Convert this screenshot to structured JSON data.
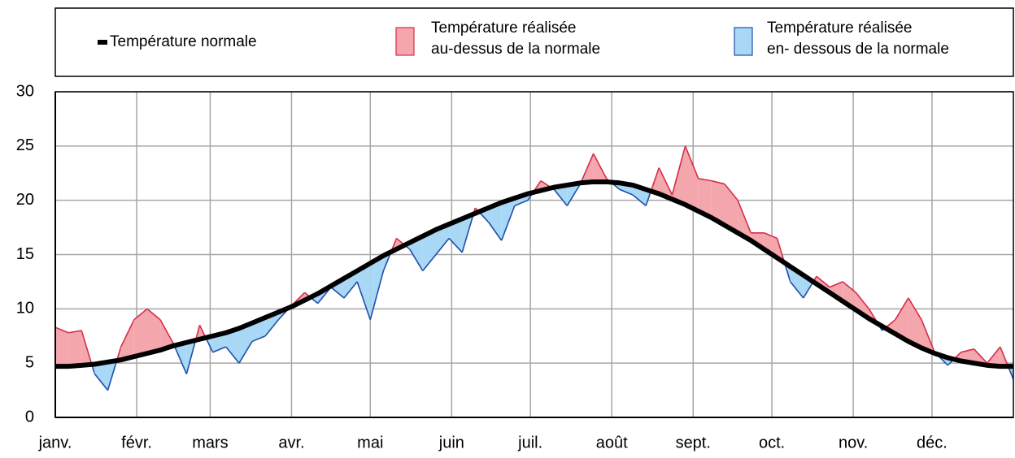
{
  "chart_data": {
    "type": "area-deviation",
    "legend": [
      {
        "name": "Température normale",
        "color": "#000000"
      },
      {
        "name": "Température réalisée\nau-dessus de la normale",
        "color": "#f4a6ad",
        "edge": "#d62d4a"
      },
      {
        "name": "Température réalisée\nen- dessous de la normale",
        "color": "#a8d8f5",
        "edge": "#1f4fa8"
      }
    ],
    "x": [
      0,
      5,
      10,
      15,
      20,
      25,
      30,
      35,
      40,
      45,
      50,
      55,
      60,
      65,
      70,
      75,
      80,
      85,
      90,
      95,
      100,
      105,
      110,
      115,
      120,
      125,
      130,
      135,
      140,
      145,
      150,
      155,
      160,
      165,
      170,
      175,
      180,
      185,
      190,
      195,
      200,
      205,
      210,
      215,
      220,
      225,
      230,
      235,
      240,
      245,
      250,
      255,
      260,
      265,
      270,
      275,
      280,
      285,
      290,
      295,
      300,
      305,
      310,
      315,
      320,
      325,
      330,
      335,
      340,
      345,
      350,
      355,
      360,
      365
    ],
    "normal": [
      4.7,
      4.7,
      4.8,
      4.9,
      5.1,
      5.3,
      5.6,
      5.9,
      6.2,
      6.6,
      6.9,
      7.2,
      7.5,
      7.8,
      8.2,
      8.7,
      9.2,
      9.7,
      10.2,
      10.8,
      11.4,
      12.1,
      12.8,
      13.5,
      14.2,
      14.9,
      15.5,
      16.1,
      16.7,
      17.3,
      17.8,
      18.3,
      18.8,
      19.3,
      19.8,
      20.2,
      20.6,
      20.9,
      21.2,
      21.4,
      21.6,
      21.7,
      21.7,
      21.6,
      21.4,
      21.0,
      20.6,
      20.1,
      19.6,
      19.0,
      18.4,
      17.7,
      17.0,
      16.3,
      15.5,
      14.7,
      13.9,
      13.1,
      12.3,
      11.5,
      10.7,
      9.9,
      9.1,
      8.4,
      7.7,
      7.0,
      6.4,
      5.9,
      5.5,
      5.2,
      5.0,
      4.8,
      4.7,
      4.7
    ],
    "realized": [
      8.3,
      7.8,
      8.0,
      4.0,
      2.5,
      6.5,
      9.0,
      10.0,
      9.0,
      6.8,
      4.0,
      8.5,
      6.0,
      6.5,
      5.0,
      7.0,
      7.5,
      9.0,
      10.3,
      11.5,
      10.5,
      12.0,
      11.0,
      12.5,
      9.0,
      13.5,
      16.5,
      15.5,
      13.5,
      15.0,
      16.5,
      15.2,
      19.3,
      18.0,
      16.3,
      19.5,
      20.0,
      21.8,
      21.0,
      19.5,
      21.5,
      24.3,
      22.0,
      21.0,
      20.5,
      19.5,
      23.0,
      20.5,
      25.0,
      22.0,
      21.8,
      21.5,
      20.0,
      17.0,
      17.0,
      16.5,
      12.5,
      11.0,
      13.0,
      12.0,
      12.5,
      11.5,
      10.0,
      8.0,
      9.0,
      11.0,
      9.0,
      6.0,
      4.8,
      6.0,
      6.3,
      5.0,
      6.5,
      3.5
    ],
    "xlim": [
      0,
      365
    ],
    "xticks": [
      {
        "value": 0,
        "label": "janv."
      },
      {
        "value": 31,
        "label": "févr."
      },
      {
        "value": 59,
        "label": "mars"
      },
      {
        "value": 90,
        "label": "avr."
      },
      {
        "value": 120,
        "label": "mai"
      },
      {
        "value": 151,
        "label": "juin"
      },
      {
        "value": 181,
        "label": "juil."
      },
      {
        "value": 212,
        "label": "août"
      },
      {
        "value": 243,
        "label": "sept."
      },
      {
        "value": 273,
        "label": "oct."
      },
      {
        "value": 304,
        "label": "nov."
      },
      {
        "value": 334,
        "label": "déc."
      }
    ],
    "ylim": [
      0,
      30
    ],
    "yticks": [
      0,
      5,
      10,
      15,
      20,
      25,
      30
    ],
    "grid": true
  }
}
